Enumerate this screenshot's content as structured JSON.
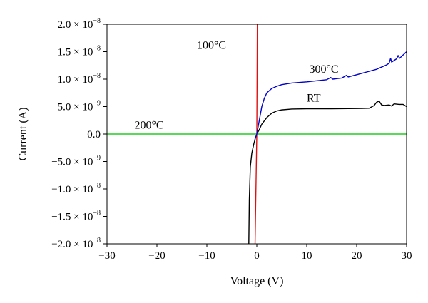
{
  "chart_data": {
    "type": "line",
    "title": "",
    "xlabel": "Voltage (V)",
    "ylabel": "Current (A)",
    "xlim": [
      -30,
      30
    ],
    "ylim": [
      -2e-08,
      2e-08
    ],
    "grid": false,
    "x_ticks": [
      -30,
      -20,
      -10,
      0,
      10,
      20,
      30
    ],
    "x_tick_labels": [
      "−30",
      "−20",
      "−10",
      "0",
      "10",
      "20",
      "30"
    ],
    "y_ticks": [
      2e-08,
      1.5e-08,
      1e-08,
      5e-09,
      0,
      -5e-09,
      -1e-08,
      -1.5e-08,
      -2e-08
    ],
    "y_tick_labels": [
      {
        "mant": "2.0 × 10",
        "exp": "−8"
      },
      {
        "mant": "1.5 × 10",
        "exp": "−8"
      },
      {
        "mant": "1.0 × 10",
        "exp": "−8"
      },
      {
        "mant": "5.0 × 10",
        "exp": "−9"
      },
      {
        "mant": "0.0",
        "exp": ""
      },
      {
        "mant": "−5.0 × 10",
        "exp": "−9"
      },
      {
        "mant": "−1.0 × 10",
        "exp": "−8"
      },
      {
        "mant": "−1.5 × 10",
        "exp": "−8"
      },
      {
        "mant": "−2.0 × 10",
        "exp": "−8"
      }
    ],
    "series": [
      {
        "name": "RT",
        "color": "#000000",
        "points": [
          [
            -1.6,
            -2e-08
          ],
          [
            -1.5,
            -1.2e-08
          ],
          [
            -1.3,
            -6e-09
          ],
          [
            -1.0,
            -3.5e-09
          ],
          [
            -0.6,
            -1.8e-09
          ],
          [
            -0.3,
            -8e-10
          ],
          [
            0,
            0
          ],
          [
            0.5,
            8e-10
          ],
          [
            1.0,
            1.8e-09
          ],
          [
            2.0,
            3e-09
          ],
          [
            3.0,
            3.8e-09
          ],
          [
            4.0,
            4.2e-09
          ],
          [
            5.0,
            4.4e-09
          ],
          [
            7.0,
            4.55e-09
          ],
          [
            10.0,
            4.6e-09
          ],
          [
            15.0,
            4.6e-09
          ],
          [
            20.0,
            4.65e-09
          ],
          [
            22.5,
            4.7e-09
          ],
          [
            23.5,
            5.2e-09
          ],
          [
            24.0,
            5.8e-09
          ],
          [
            24.5,
            6e-09
          ],
          [
            25.0,
            5.3e-09
          ],
          [
            25.5,
            5.2e-09
          ],
          [
            26.5,
            5.3e-09
          ],
          [
            27.0,
            5.1e-09
          ],
          [
            27.5,
            5.5e-09
          ],
          [
            28.5,
            5.4e-09
          ],
          [
            29.3,
            5.4e-09
          ],
          [
            30.0,
            5e-09
          ]
        ]
      },
      {
        "name": "100°C",
        "color": "#dd1111",
        "points": [
          [
            -0.35,
            -2e-08
          ],
          [
            0.0,
            0
          ],
          [
            0.1,
            2e-08
          ]
        ]
      },
      {
        "name": "200°C",
        "color": "#22cc22",
        "points": [
          [
            -30,
            0
          ],
          [
            30,
            0
          ]
        ]
      },
      {
        "name": "300°C",
        "color": "#0000cc",
        "points": [
          [
            -0.4,
            -1e-09
          ],
          [
            -0.2,
            -5e-10
          ],
          [
            0,
            0
          ],
          [
            0.3,
            1.5e-09
          ],
          [
            0.7,
            3.5e-09
          ],
          [
            1.0,
            5e-09
          ],
          [
            1.5,
            6.5e-09
          ],
          [
            2.0,
            7.5e-09
          ],
          [
            3.0,
            8.3e-09
          ],
          [
            4.0,
            8.7e-09
          ],
          [
            5.0,
            9e-09
          ],
          [
            7.0,
            9.3e-09
          ],
          [
            10.0,
            9.5e-09
          ],
          [
            12.0,
            9.7e-09
          ],
          [
            14.0,
            9.9e-09
          ],
          [
            14.8,
            1.03e-08
          ],
          [
            15.2,
            1e-08
          ],
          [
            17.0,
            1.02e-08
          ],
          [
            18.0,
            1.07e-08
          ],
          [
            18.3,
            1.04e-08
          ],
          [
            20.0,
            1.08e-08
          ],
          [
            22.0,
            1.13e-08
          ],
          [
            24.0,
            1.18e-08
          ],
          [
            25.0,
            1.22e-08
          ],
          [
            26.0,
            1.26e-08
          ],
          [
            26.5,
            1.29e-08
          ],
          [
            26.8,
            1.38e-08
          ],
          [
            27.0,
            1.31e-08
          ],
          [
            28.0,
            1.37e-08
          ],
          [
            28.3,
            1.43e-08
          ],
          [
            28.6,
            1.38e-08
          ],
          [
            29.3,
            1.44e-08
          ],
          [
            30.0,
            1.5e-08
          ]
        ]
      }
    ],
    "annotations": [
      {
        "text": "100°C",
        "series": "100°C",
        "x": -12.0,
        "y": 1.55e-08
      },
      {
        "text": "300°C",
        "series": "300°C",
        "x": 10.5,
        "y": 1.12e-08
      },
      {
        "text": "RT",
        "series": "RT",
        "x": 10.0,
        "y": 5.9e-09
      },
      {
        "text": "200°C",
        "series": "200°C",
        "x": -24.5,
        "y": 1e-09
      }
    ]
  }
}
